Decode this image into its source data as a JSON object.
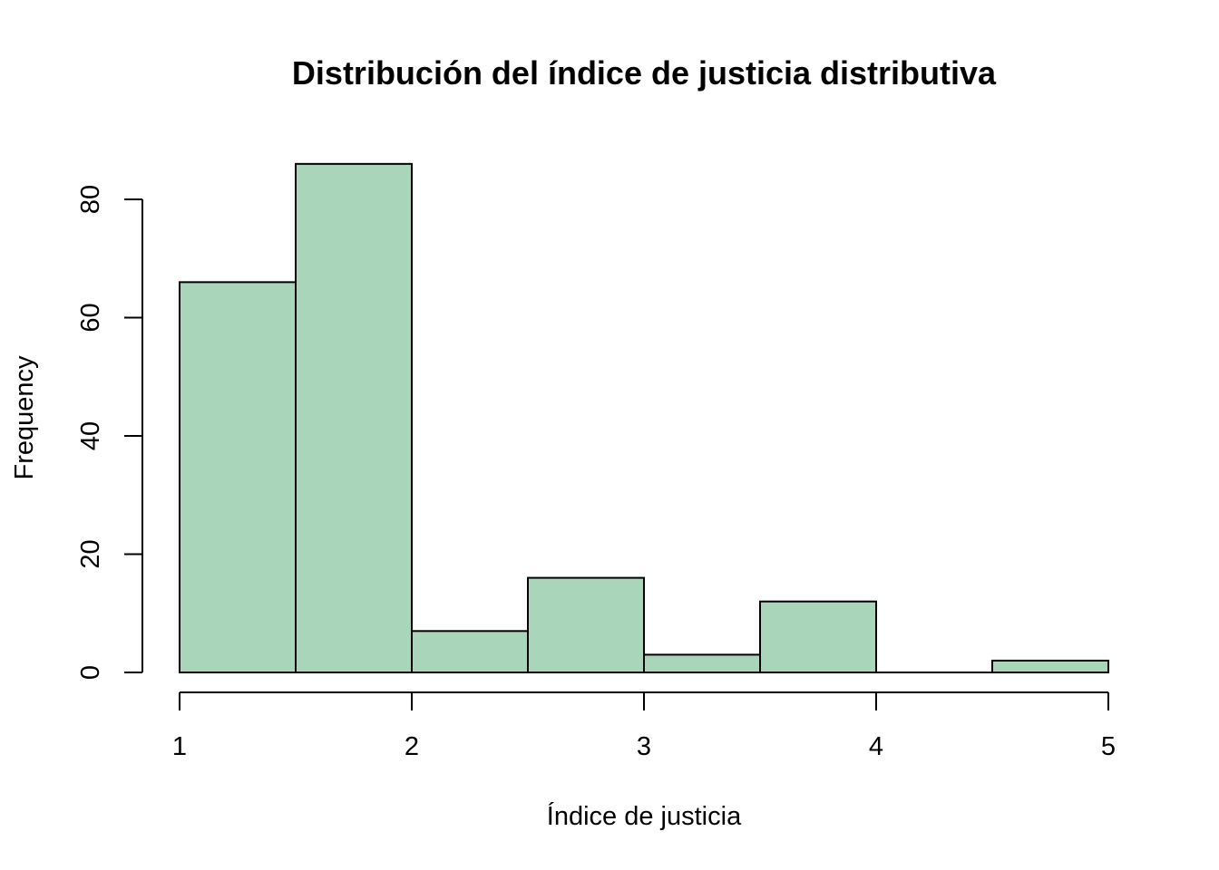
{
  "chart_data": {
    "type": "bar",
    "title": "Distribución del índice de justicia distributiva",
    "xlabel": "Índice de justicia",
    "ylabel": "Frequency",
    "bins": [
      {
        "x0": 1.0,
        "x1": 1.5,
        "count": 66
      },
      {
        "x0": 1.5,
        "x1": 2.0,
        "count": 86
      },
      {
        "x0": 2.0,
        "x1": 2.5,
        "count": 7
      },
      {
        "x0": 2.5,
        "x1": 3.0,
        "count": 16
      },
      {
        "x0": 3.0,
        "x1": 3.5,
        "count": 3
      },
      {
        "x0": 3.5,
        "x1": 4.0,
        "count": 12
      },
      {
        "x0": 4.0,
        "x1": 4.5,
        "count": 0
      },
      {
        "x0": 4.5,
        "x1": 5.0,
        "count": 2
      }
    ],
    "xticks": [
      1,
      2,
      3,
      4,
      5
    ],
    "yticks": [
      0,
      20,
      40,
      60,
      80
    ],
    "xlim": [
      1,
      5
    ],
    "ylim": [
      0,
      86
    ],
    "bar_color": "#a9d5bb",
    "grid": false
  }
}
